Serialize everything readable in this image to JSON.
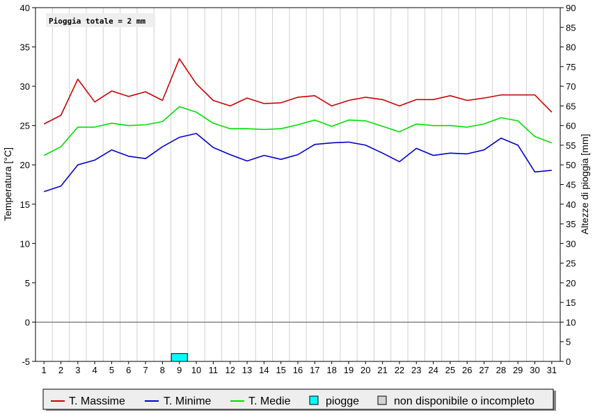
{
  "chart_data": {
    "type": "line",
    "annotation": "Pioggia totale = 2 mm",
    "ylabel": "Temperatura [°C]",
    "y2label": "Altezze di pioggia [mm]",
    "ylim": [
      -5,
      40
    ],
    "y2lim": [
      0,
      90
    ],
    "yticks": [
      -5,
      0,
      5,
      10,
      15,
      20,
      25,
      30,
      35,
      40
    ],
    "y2ticks": [
      0,
      5,
      10,
      15,
      20,
      25,
      30,
      35,
      40,
      45,
      50,
      55,
      60,
      65,
      70,
      75,
      80,
      85,
      90
    ],
    "x": [
      1,
      2,
      3,
      4,
      5,
      6,
      7,
      8,
      9,
      10,
      11,
      12,
      13,
      14,
      15,
      16,
      17,
      18,
      19,
      20,
      21,
      22,
      23,
      24,
      25,
      26,
      27,
      28,
      29,
      30,
      31
    ],
    "grid": "vertical",
    "series": [
      {
        "name": "T. Massime",
        "color": "#cc0000",
        "values": [
          25.2,
          26.3,
          30.9,
          28.0,
          29.4,
          28.7,
          29.3,
          28.2,
          33.5,
          30.3,
          28.2,
          27.5,
          28.5,
          27.8,
          27.9,
          28.6,
          28.8,
          27.5,
          28.2,
          28.6,
          28.3,
          27.5,
          28.3,
          28.3,
          28.8,
          28.2,
          28.5,
          28.9,
          28.9,
          28.9,
          26.7
        ]
      },
      {
        "name": "T. Minime",
        "color": "#0000cc",
        "values": [
          16.6,
          17.3,
          20.0,
          20.6,
          21.9,
          21.1,
          20.8,
          22.3,
          23.5,
          24.0,
          22.2,
          21.3,
          20.5,
          21.2,
          20.7,
          21.3,
          22.6,
          22.8,
          22.9,
          22.5,
          21.5,
          20.4,
          22.1,
          21.2,
          21.5,
          21.4,
          21.9,
          23.4,
          22.5,
          19.1,
          19.3
        ]
      },
      {
        "name": "T. Medie",
        "color": "#00dd00",
        "values": [
          21.2,
          22.3,
          24.8,
          24.8,
          25.3,
          25.0,
          25.1,
          25.5,
          27.4,
          26.7,
          25.3,
          24.6,
          24.6,
          24.5,
          24.6,
          25.1,
          25.7,
          24.9,
          25.7,
          25.6,
          24.9,
          24.2,
          25.2,
          25.0,
          25.0,
          24.8,
          25.2,
          26.0,
          25.6,
          23.6,
          22.8
        ]
      }
    ],
    "rain": {
      "name": "piogge",
      "color": "#00ffff",
      "values": {
        "9": 2
      }
    },
    "legend": {
      "position": "bottom",
      "items": [
        {
          "label": "T. Massime",
          "kind": "line",
          "color": "#cc0000"
        },
        {
          "label": "T. Minime",
          "kind": "line",
          "color": "#0000cc"
        },
        {
          "label": "T. Medie",
          "kind": "line",
          "color": "#00dd00"
        },
        {
          "label": "piogge",
          "kind": "box",
          "color": "#00ffff"
        },
        {
          "label": "non disponibile o incompleto",
          "kind": "box",
          "color": "#d3d3d3"
        }
      ]
    }
  }
}
